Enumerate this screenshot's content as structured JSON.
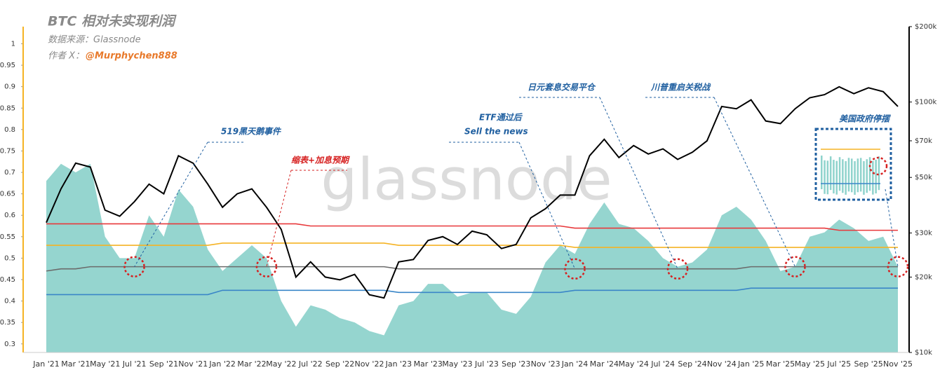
{
  "chart_data": {
    "type": "line",
    "title": "BTC 相对未实现利润",
    "source": "数据来源：Glassnode",
    "author_label": "作者 X：",
    "author": "@Murphychen888",
    "watermark": "glassnode",
    "annotations": [
      "519黑天鹅事件",
      "缩表+加息预期",
      "ETF通过后",
      "Sell the news",
      "日元套息交易平仓",
      "川普重启关税战",
      "美国政府停摆"
    ],
    "categories": [
      "Jan '21",
      null,
      "Mar '21",
      null,
      "May '21",
      null,
      "Jul '21",
      null,
      "Sep '21",
      null,
      "Nov '21",
      null,
      "Jan '22",
      null,
      "Mar '22",
      null,
      "May '22",
      null,
      "Jul '22",
      null,
      "Sep '22",
      null,
      "Nov '22",
      null,
      "Jan '23",
      null,
      "Mar '23",
      null,
      "May '23",
      null,
      "Jul '23",
      null,
      "Sep '23",
      null,
      "Nov '23",
      null,
      "Jan '24",
      null,
      "Mar '24",
      null,
      "May '24",
      null,
      "Jul '24",
      null,
      "Sep '24",
      null,
      "Nov '24",
      null,
      "Jan '25",
      null,
      "Mar '25",
      null,
      "May '25",
      null,
      "Jul '25",
      null,
      "Sep '25",
      null,
      "Nov '25"
    ],
    "series": [
      {
        "type": "area",
        "color": "#8fd3cc",
        "values": [
          0.68,
          0.72,
          0.7,
          0.72,
          0.55,
          0.5,
          0.5,
          0.6,
          0.55,
          0.66,
          0.62,
          0.52,
          0.47,
          0.5,
          0.53,
          0.5,
          0.4,
          0.34,
          0.39,
          0.38,
          0.36,
          0.35,
          0.33,
          0.32,
          0.39,
          0.4,
          0.44,
          0.44,
          0.41,
          0.42,
          0.42,
          0.38,
          0.37,
          0.41,
          0.49,
          0.53,
          0.51,
          0.58,
          0.63,
          0.58,
          0.57,
          0.54,
          0.5,
          0.48,
          0.49,
          0.52,
          0.6,
          0.62,
          0.59,
          0.54,
          0.47,
          0.48,
          0.55,
          0.56,
          0.59,
          0.57,
          0.54,
          0.55,
          0.48
        ]
      },
      {
        "type": "line",
        "axis": "y2",
        "color": "#000000",
        "values": [
          33000,
          45000,
          57000,
          55000,
          37000,
          35000,
          40000,
          47000,
          43000,
          61000,
          57000,
          47000,
          38000,
          43000,
          45000,
          38000,
          31000,
          20000,
          23000,
          20000,
          19500,
          20500,
          17000,
          16500,
          23000,
          23500,
          28000,
          29000,
          27000,
          30500,
          29500,
          26000,
          27000,
          34500,
          37500,
          42500,
          42500,
          61000,
          71000,
          60000,
          67000,
          62000,
          65000,
          59000,
          63000,
          70000,
          96000,
          94000,
          102000,
          84000,
          82000,
          94000,
          104000,
          107000,
          115000,
          108000,
          114000,
          110000,
          96000
        ]
      },
      {
        "type": "line",
        "color": "#e8383b",
        "values": [
          0.58,
          0.58,
          0.58,
          0.58,
          0.58,
          0.58,
          0.58,
          0.58,
          0.58,
          0.58,
          0.58,
          0.58,
          0.58,
          0.58,
          0.58,
          0.58,
          0.58,
          0.58,
          0.575,
          0.575,
          0.575,
          0.575,
          0.575,
          0.575,
          0.575,
          0.575,
          0.575,
          0.575,
          0.575,
          0.575,
          0.575,
          0.575,
          0.575,
          0.575,
          0.575,
          0.575,
          0.57,
          0.57,
          0.57,
          0.57,
          0.57,
          0.57,
          0.57,
          0.57,
          0.57,
          0.57,
          0.57,
          0.57,
          0.57,
          0.57,
          0.57,
          0.57,
          0.57,
          0.57,
          0.565,
          0.565,
          0.565,
          0.565,
          0.565
        ]
      },
      {
        "type": "line",
        "color": "#f5b324",
        "values": [
          0.53,
          0.53,
          0.53,
          0.53,
          0.53,
          0.53,
          0.53,
          0.53,
          0.53,
          0.53,
          0.53,
          0.53,
          0.535,
          0.535,
          0.535,
          0.535,
          0.535,
          0.535,
          0.535,
          0.535,
          0.535,
          0.535,
          0.535,
          0.535,
          0.53,
          0.53,
          0.53,
          0.53,
          0.53,
          0.53,
          0.53,
          0.53,
          0.53,
          0.53,
          0.53,
          0.53,
          0.525,
          0.525,
          0.525,
          0.525,
          0.525,
          0.525,
          0.525,
          0.525,
          0.525,
          0.525,
          0.525,
          0.525,
          0.525,
          0.525,
          0.525,
          0.525,
          0.525,
          0.525,
          0.525,
          0.525,
          0.525,
          0.525,
          0.525
        ]
      },
      {
        "type": "line",
        "color": "#6b6b6b",
        "values": [
          0.47,
          0.475,
          0.475,
          0.48,
          0.48,
          0.48,
          0.48,
          0.48,
          0.48,
          0.48,
          0.48,
          0.48,
          0.48,
          0.48,
          0.48,
          0.48,
          0.48,
          0.48,
          0.48,
          0.48,
          0.48,
          0.48,
          0.48,
          0.48,
          0.475,
          0.475,
          0.475,
          0.475,
          0.475,
          0.475,
          0.475,
          0.475,
          0.475,
          0.475,
          0.475,
          0.475,
          0.475,
          0.475,
          0.475,
          0.475,
          0.475,
          0.475,
          0.475,
          0.475,
          0.475,
          0.475,
          0.475,
          0.475,
          0.48,
          0.48,
          0.48,
          0.48,
          0.48,
          0.48,
          0.48,
          0.48,
          0.48,
          0.48,
          0.48
        ]
      },
      {
        "type": "line",
        "color": "#3a86c8",
        "values": [
          0.415,
          0.415,
          0.415,
          0.415,
          0.415,
          0.415,
          0.415,
          0.415,
          0.415,
          0.415,
          0.415,
          0.415,
          0.425,
          0.425,
          0.425,
          0.425,
          0.425,
          0.425,
          0.425,
          0.425,
          0.425,
          0.425,
          0.425,
          0.425,
          0.42,
          0.42,
          0.42,
          0.42,
          0.42,
          0.42,
          0.42,
          0.42,
          0.42,
          0.42,
          0.42,
          0.42,
          0.425,
          0.425,
          0.425,
          0.425,
          0.425,
          0.425,
          0.425,
          0.425,
          0.425,
          0.425,
          0.425,
          0.425,
          0.43,
          0.43,
          0.43,
          0.43,
          0.43,
          0.43,
          0.43,
          0.43,
          0.43,
          0.43,
          0.43
        ]
      }
    ],
    "ylim": [
      0.28,
      1.04
    ],
    "yticks": [
      0.3,
      0.35,
      0.4,
      0.45,
      0.5,
      0.55,
      0.6,
      0.65,
      0.7,
      0.75,
      0.8,
      0.85,
      0.9,
      0.95,
      1
    ],
    "y2lim": [
      10000,
      200000
    ],
    "y2log": true,
    "y2ticks": [
      {
        "value": 10000,
        "label": "$10k"
      },
      {
        "value": 20000,
        "label": "$20k"
      },
      {
        "value": 30000,
        "label": "$30k"
      },
      {
        "value": 50000,
        "label": "$50k"
      },
      {
        "value": 70000,
        "label": "$70k"
      },
      {
        "value": 100000,
        "label": "$100k"
      },
      {
        "value": 200000,
        "label": "$200k"
      }
    ],
    "left_axis_color": "#f5b324"
  }
}
